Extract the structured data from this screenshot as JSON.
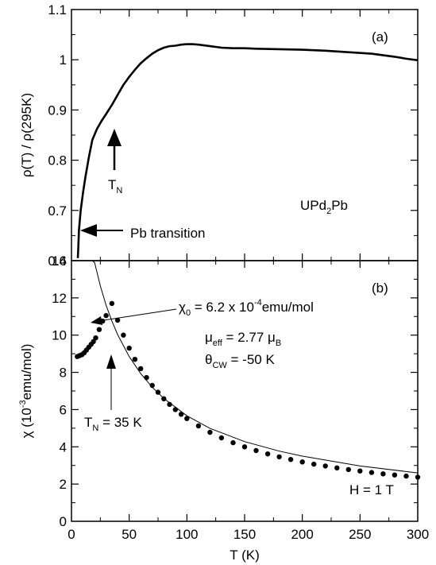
{
  "chart_data": [
    {
      "type": "line",
      "panel_label": "(a)",
      "ylabel": "ρ(T) / ρ(295K)",
      "xlabel": "",
      "xlim": [
        0,
        300
      ],
      "ylim": [
        0.6,
        1.1
      ],
      "yticks": [
        "0.6",
        "0.7",
        "0.8",
        "0.9",
        "1",
        "1.1"
      ],
      "compound": {
        "main": "UPd",
        "sub": "2",
        "tail": "Pb"
      },
      "annotations": {
        "tn": {
          "main": "T",
          "sub": "N"
        },
        "pb_transition": "Pb transition"
      },
      "x": [
        5.5,
        6,
        6.5,
        7,
        8,
        10,
        12,
        15,
        18,
        22,
        26,
        30,
        35,
        40,
        45,
        50,
        55,
        60,
        65,
        70,
        75,
        80,
        85,
        90,
        95,
        100,
        105,
        110,
        120,
        130,
        140,
        150,
        160,
        180,
        200,
        220,
        240,
        260,
        280,
        290,
        300
      ],
      "y": [
        0.605,
        0.63,
        0.66,
        0.675,
        0.7,
        0.735,
        0.765,
        0.805,
        0.84,
        0.862,
        0.878,
        0.892,
        0.91,
        0.93,
        0.95,
        0.966,
        0.98,
        0.993,
        1.003,
        1.012,
        1.019,
        1.024,
        1.027,
        1.028,
        1.03,
        1.031,
        1.031,
        1.03,
        1.027,
        1.024,
        1.023,
        1.023,
        1.022,
        1.021,
        1.02,
        1.018,
        1.015,
        1.012,
        1.006,
        1.002,
        0.999
      ]
    },
    {
      "type": "scatter",
      "panel_label": "(b)",
      "xlabel": "T (K)",
      "ylabel": {
        "pre": "χ (10",
        "sup": "-3",
        "post": "emu/mol)"
      },
      "xlim": [
        0,
        300
      ],
      "ylim": [
        0,
        14
      ],
      "xticks": [
        "0",
        "50",
        "100",
        "150",
        "200",
        "250",
        "300"
      ],
      "yticks": [
        "0",
        "2",
        "4",
        "6",
        "8",
        "10",
        "12",
        "14"
      ],
      "series": [
        {
          "x": [
            5,
            7,
            9,
            11,
            13,
            15,
            17,
            19,
            21,
            24,
            27,
            30,
            35,
            40,
            45,
            50,
            55,
            60,
            65,
            70,
            75,
            80,
            85,
            90,
            95,
            100,
            110,
            120,
            130,
            140,
            150,
            160,
            170,
            180,
            190,
            200,
            210,
            220,
            230,
            240,
            250,
            260,
            270,
            280,
            290,
            300
          ],
          "y": [
            8.85,
            8.9,
            8.95,
            9.05,
            9.2,
            9.35,
            9.5,
            9.65,
            9.85,
            10.3,
            10.75,
            11.05,
            11.7,
            10.8,
            10.0,
            9.3,
            8.7,
            8.2,
            7.72,
            7.3,
            6.93,
            6.58,
            6.28,
            6.0,
            5.75,
            5.52,
            5.12,
            4.78,
            4.48,
            4.22,
            4.0,
            3.8,
            3.62,
            3.46,
            3.32,
            3.19,
            3.07,
            2.97,
            2.87,
            2.78,
            2.7,
            2.62,
            2.55,
            2.49,
            2.43,
            2.37
          ]
        },
        {
          "type": "line",
          "x": [
            15,
            18,
            20,
            25,
            30,
            35,
            40,
            50,
            60,
            70,
            80,
            100,
            120,
            150,
            180,
            200,
            250,
            300
          ],
          "y": [
            15.6,
            14.5,
            13.9,
            12.65,
            11.6,
            10.75,
            10.03,
            8.85,
            7.93,
            7.2,
            6.6,
            5.67,
            4.99,
            4.28,
            3.77,
            3.5,
            2.97,
            2.6
          ]
        }
      ],
      "annotations": {
        "chi0": {
          "main": "χ",
          "sub": "0",
          "tail": " = 6.2 x 10",
          "sup": "-4",
          "end": "emu/mol"
        },
        "mueff": {
          "main": "μ",
          "sub": "eff",
          "tail": " = 2.77 μ",
          "sub2": "B"
        },
        "thetacw": {
          "main": "θ",
          "sub": "CW",
          "tail": " = -50 K"
        },
        "tn": {
          "main": "T",
          "sub": "N",
          "tail": " = 35 K"
        },
        "field": "H = 1 T"
      }
    }
  ]
}
